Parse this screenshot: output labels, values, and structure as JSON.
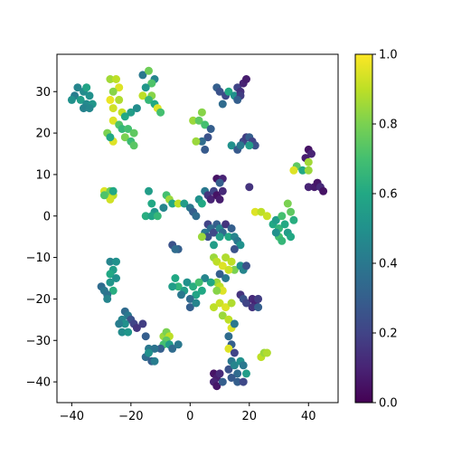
{
  "chart_data": {
    "type": "scatter",
    "title": "",
    "xlabel": "",
    "ylabel": "",
    "xlim": [
      -45,
      50
    ],
    "ylim": [
      -45,
      39
    ],
    "xticks": [
      -40,
      -20,
      0,
      20,
      40
    ],
    "yticks": [
      -40,
      -30,
      -20,
      -10,
      0,
      10,
      20,
      30
    ],
    "grid": false,
    "colormap": "viridis",
    "colorbar": {
      "min": 0.0,
      "max": 1.0,
      "ticks": [
        "0.0",
        "0.2",
        "0.4",
        "0.6",
        "0.8",
        "1.0"
      ]
    },
    "points": [
      {
        "x": -38,
        "y": 31,
        "c": 0.45
      },
      {
        "x": -36,
        "y": 30,
        "c": 0.48
      },
      {
        "x": -34,
        "y": 29,
        "c": 0.5
      },
      {
        "x": -39,
        "y": 29,
        "c": 0.42
      },
      {
        "x": -37,
        "y": 28,
        "c": 0.55
      },
      {
        "x": -35,
        "y": 27,
        "c": 0.47
      },
      {
        "x": -33,
        "y": 27,
        "c": 0.52
      },
      {
        "x": -36,
        "y": 26,
        "c": 0.44
      },
      {
        "x": -40,
        "y": 28,
        "c": 0.5
      },
      {
        "x": -35,
        "y": 31,
        "c": 0.58
      },
      {
        "x": -34,
        "y": 26,
        "c": 0.46
      },
      {
        "x": -27,
        "y": 33,
        "c": 0.86
      },
      {
        "x": -25,
        "y": 33,
        "c": 0.9
      },
      {
        "x": -24,
        "y": 31,
        "c": 0.95
      },
      {
        "x": -26,
        "y": 30,
        "c": 0.82
      },
      {
        "x": -27,
        "y": 28,
        "c": 0.97
      },
      {
        "x": -24,
        "y": 28,
        "c": 0.88
      },
      {
        "x": -26,
        "y": 26,
        "c": 0.93
      },
      {
        "x": -23,
        "y": 25,
        "c": 0.91
      },
      {
        "x": -26,
        "y": 23,
        "c": 0.95
      },
      {
        "x": -24,
        "y": 22,
        "c": 0.72
      },
      {
        "x": -22,
        "y": 24,
        "c": 0.6
      },
      {
        "x": -20,
        "y": 25,
        "c": 0.55
      },
      {
        "x": -18,
        "y": 26,
        "c": 0.48
      },
      {
        "x": -23,
        "y": 21,
        "c": 0.66
      },
      {
        "x": -21,
        "y": 21,
        "c": 0.7
      },
      {
        "x": -19,
        "y": 20,
        "c": 0.75
      },
      {
        "x": -22,
        "y": 19,
        "c": 0.8
      },
      {
        "x": -20,
        "y": 18,
        "c": 0.68
      },
      {
        "x": -19,
        "y": 17,
        "c": 0.74
      },
      {
        "x": -28,
        "y": 20,
        "c": 0.8
      },
      {
        "x": -26,
        "y": 18,
        "c": 0.95
      },
      {
        "x": -27,
        "y": 19,
        "c": 0.6
      },
      {
        "x": -16,
        "y": 34,
        "c": 0.4
      },
      {
        "x": -14,
        "y": 35,
        "c": 0.78
      },
      {
        "x": -12,
        "y": 33,
        "c": 0.45
      },
      {
        "x": -13,
        "y": 32,
        "c": 0.72
      },
      {
        "x": -15,
        "y": 31,
        "c": 0.52
      },
      {
        "x": -16,
        "y": 29,
        "c": 0.9
      },
      {
        "x": -13,
        "y": 29,
        "c": 0.82
      },
      {
        "x": -14,
        "y": 28,
        "c": 0.66
      },
      {
        "x": -12,
        "y": 27,
        "c": 0.6
      },
      {
        "x": -11,
        "y": 26,
        "c": 0.95
      },
      {
        "x": -10,
        "y": 25,
        "c": 0.7
      },
      {
        "x": 9,
        "y": 31,
        "c": 0.3
      },
      {
        "x": 10,
        "y": 30,
        "c": 0.25
      },
      {
        "x": 12,
        "y": 29,
        "c": 0.22
      },
      {
        "x": 11,
        "y": 27,
        "c": 0.35
      },
      {
        "x": 13,
        "y": 30,
        "c": 0.6
      },
      {
        "x": 15,
        "y": 29,
        "c": 0.5
      },
      {
        "x": 16,
        "y": 31,
        "c": 0.2
      },
      {
        "x": 17,
        "y": 30,
        "c": 0.14
      },
      {
        "x": 18,
        "y": 32,
        "c": 0.1
      },
      {
        "x": 17,
        "y": 29,
        "c": 0.18
      },
      {
        "x": 16,
        "y": 28,
        "c": 0.3
      },
      {
        "x": 19,
        "y": 33,
        "c": 0.08
      },
      {
        "x": 1,
        "y": 23,
        "c": 0.85
      },
      {
        "x": 3,
        "y": 23,
        "c": 0.75
      },
      {
        "x": 4,
        "y": 25,
        "c": 0.82
      },
      {
        "x": 5,
        "y": 22,
        "c": 0.7
      },
      {
        "x": 7,
        "y": 21,
        "c": 0.3
      },
      {
        "x": 6,
        "y": 19,
        "c": 0.25
      },
      {
        "x": 4,
        "y": 18,
        "c": 0.35
      },
      {
        "x": 2,
        "y": 18,
        "c": 0.85
      },
      {
        "x": 5,
        "y": 16,
        "c": 0.28
      },
      {
        "x": 14,
        "y": 17,
        "c": 0.5
      },
      {
        "x": 16,
        "y": 16,
        "c": 0.28
      },
      {
        "x": 18,
        "y": 18,
        "c": 0.22
      },
      {
        "x": 19,
        "y": 19,
        "c": 0.18
      },
      {
        "x": 20,
        "y": 19,
        "c": 0.3
      },
      {
        "x": 21,
        "y": 18,
        "c": 0.2
      },
      {
        "x": 22,
        "y": 17,
        "c": 0.25
      },
      {
        "x": 17,
        "y": 17,
        "c": 0.4
      },
      {
        "x": 20,
        "y": 17,
        "c": 0.55
      },
      {
        "x": 40,
        "y": 16,
        "c": 0.05
      },
      {
        "x": 41,
        "y": 15,
        "c": 0.1
      },
      {
        "x": 39,
        "y": 14,
        "c": 0.08
      },
      {
        "x": 40,
        "y": 13,
        "c": 0.86
      },
      {
        "x": 36,
        "y": 12,
        "c": 0.75
      },
      {
        "x": 35,
        "y": 11,
        "c": 0.95
      },
      {
        "x": 38,
        "y": 11,
        "c": 0.6
      },
      {
        "x": 40,
        "y": 11,
        "c": 0.85
      },
      {
        "x": 40,
        "y": 7,
        "c": 0.1
      },
      {
        "x": 42,
        "y": 7,
        "c": 0.08
      },
      {
        "x": 43,
        "y": 8,
        "c": 0.06
      },
      {
        "x": 44,
        "y": 7,
        "c": 0.12
      },
      {
        "x": 45,
        "y": 6,
        "c": 0.05
      },
      {
        "x": -29,
        "y": 6,
        "c": 0.95
      },
      {
        "x": -28,
        "y": 5,
        "c": 0.92
      },
      {
        "x": -27,
        "y": 6,
        "c": 0.78
      },
      {
        "x": -26,
        "y": 5,
        "c": 0.9
      },
      {
        "x": -27,
        "y": 4,
        "c": 0.93
      },
      {
        "x": -29,
        "y": 5,
        "c": 0.72
      },
      {
        "x": -26,
        "y": 6,
        "c": 0.6
      },
      {
        "x": -14,
        "y": 6,
        "c": 0.55
      },
      {
        "x": -13,
        "y": 3,
        "c": 0.6
      },
      {
        "x": -12,
        "y": 1,
        "c": 0.52
      },
      {
        "x": -15,
        "y": 0,
        "c": 0.62
      },
      {
        "x": -13,
        "y": 0,
        "c": 0.58
      },
      {
        "x": -11,
        "y": 0,
        "c": 0.66
      },
      {
        "x": -9,
        "y": 2,
        "c": 0.45
      },
      {
        "x": -8,
        "y": 5,
        "c": 0.7
      },
      {
        "x": -7,
        "y": 4,
        "c": 0.85
      },
      {
        "x": -6,
        "y": 3,
        "c": 0.6
      },
      {
        "x": -4,
        "y": 3,
        "c": 0.9
      },
      {
        "x": -2,
        "y": 3,
        "c": 0.55
      },
      {
        "x": 0,
        "y": 2,
        "c": 0.4
      },
      {
        "x": 1,
        "y": 1,
        "c": 0.3
      },
      {
        "x": 2,
        "y": 0,
        "c": 0.35
      },
      {
        "x": 3,
        "y": 4,
        "c": 0.5
      },
      {
        "x": 5,
        "y": 6,
        "c": 0.4
      },
      {
        "x": 4,
        "y": 3,
        "c": 0.6
      },
      {
        "x": 6,
        "y": 5,
        "c": 0.15
      },
      {
        "x": 7,
        "y": 4,
        "c": 0.1
      },
      {
        "x": 8,
        "y": 6,
        "c": 0.2
      },
      {
        "x": 9,
        "y": 5,
        "c": 0.05
      },
      {
        "x": 10,
        "y": 4,
        "c": 0.08
      },
      {
        "x": 11,
        "y": 6,
        "c": 0.12
      },
      {
        "x": 9,
        "y": 9,
        "c": 0.05
      },
      {
        "x": 11,
        "y": 9,
        "c": 0.1
      },
      {
        "x": 10,
        "y": 8,
        "c": 0.3
      },
      {
        "x": 20,
        "y": 7,
        "c": 0.15
      },
      {
        "x": 6,
        "y": -2,
        "c": 0.2
      },
      {
        "x": 7,
        "y": -3,
        "c": 0.35
      },
      {
        "x": 5,
        "y": -4,
        "c": 0.4
      },
      {
        "x": 6,
        "y": -5,
        "c": 0.25
      },
      {
        "x": 8,
        "y": -4,
        "c": 0.22
      },
      {
        "x": 9,
        "y": -2,
        "c": 0.3
      },
      {
        "x": 10,
        "y": -3,
        "c": 0.45
      },
      {
        "x": 11,
        "y": -4,
        "c": 0.35
      },
      {
        "x": 12,
        "y": -2,
        "c": 0.15
      },
      {
        "x": 10,
        "y": -5,
        "c": 0.55
      },
      {
        "x": 13,
        "y": -5,
        "c": 0.6
      },
      {
        "x": 14,
        "y": -3,
        "c": 0.3
      },
      {
        "x": 15,
        "y": -5,
        "c": 0.45
      },
      {
        "x": 16,
        "y": -6,
        "c": 0.4
      },
      {
        "x": 17,
        "y": -7,
        "c": 0.5
      },
      {
        "x": 15,
        "y": -8,
        "c": 0.25
      },
      {
        "x": 8,
        "y": -7,
        "c": 0.55
      },
      {
        "x": 4,
        "y": -5,
        "c": 0.85
      },
      {
        "x": 22,
        "y": 1,
        "c": 0.95
      },
      {
        "x": 24,
        "y": 1,
        "c": 0.9
      },
      {
        "x": 26,
        "y": 0,
        "c": 0.92
      },
      {
        "x": 28,
        "y": -2,
        "c": 0.6
      },
      {
        "x": 29,
        "y": -1,
        "c": 0.55
      },
      {
        "x": 30,
        "y": -3,
        "c": 0.65
      },
      {
        "x": 31,
        "y": 0,
        "c": 0.7
      },
      {
        "x": 32,
        "y": -2,
        "c": 0.6
      },
      {
        "x": 33,
        "y": 3,
        "c": 0.8
      },
      {
        "x": 34,
        "y": 1,
        "c": 0.75
      },
      {
        "x": 35,
        "y": -1,
        "c": 0.62
      },
      {
        "x": 33,
        "y": -4,
        "c": 0.55
      },
      {
        "x": 30,
        "y": -5,
        "c": 0.7
      },
      {
        "x": 31,
        "y": -6,
        "c": 0.66
      },
      {
        "x": 29,
        "y": -4,
        "c": 0.5
      },
      {
        "x": 34,
        "y": -5,
        "c": 0.6
      },
      {
        "x": -6,
        "y": -7,
        "c": 0.25
      },
      {
        "x": -4,
        "y": -8,
        "c": 0.3
      },
      {
        "x": -5,
        "y": -8,
        "c": 0.35
      },
      {
        "x": 8,
        "y": -10,
        "c": 0.85
      },
      {
        "x": 9,
        "y": -11,
        "c": 0.9
      },
      {
        "x": 11,
        "y": -12,
        "c": 0.95
      },
      {
        "x": 12,
        "y": -10,
        "c": 0.88
      },
      {
        "x": 14,
        "y": -11,
        "c": 0.9
      },
      {
        "x": 15,
        "y": -13,
        "c": 0.8
      },
      {
        "x": 13,
        "y": -13,
        "c": 0.92
      },
      {
        "x": 17,
        "y": -12,
        "c": 0.5
      },
      {
        "x": 18,
        "y": -13,
        "c": 0.45
      },
      {
        "x": 19,
        "y": -12,
        "c": 0.25
      },
      {
        "x": 12,
        "y": -15,
        "c": 0.4
      },
      {
        "x": 10,
        "y": -14,
        "c": 0.3
      },
      {
        "x": 9,
        "y": -16,
        "c": 0.85
      },
      {
        "x": 10,
        "y": -17,
        "c": 0.9
      },
      {
        "x": 11,
        "y": -18,
        "c": 0.95
      },
      {
        "x": 9,
        "y": -18,
        "c": 0.82
      },
      {
        "x": 7,
        "y": -16,
        "c": 0.6
      },
      {
        "x": 5,
        "y": -15,
        "c": 0.45
      },
      {
        "x": -5,
        "y": -15,
        "c": 0.6
      },
      {
        "x": -4,
        "y": -17,
        "c": 0.65
      },
      {
        "x": -2,
        "y": -18,
        "c": 0.55
      },
      {
        "x": -1,
        "y": -16,
        "c": 0.5
      },
      {
        "x": 1,
        "y": -17,
        "c": 0.62
      },
      {
        "x": 2,
        "y": -19,
        "c": 0.58
      },
      {
        "x": 3,
        "y": -16,
        "c": 0.7
      },
      {
        "x": 4,
        "y": -18,
        "c": 0.6
      },
      {
        "x": 0,
        "y": -20,
        "c": 0.35
      },
      {
        "x": 0,
        "y": -22,
        "c": 0.3
      },
      {
        "x": 2,
        "y": -21,
        "c": 0.45
      },
      {
        "x": -3,
        "y": -19,
        "c": 0.4
      },
      {
        "x": -6,
        "y": -17,
        "c": 0.55
      },
      {
        "x": 17,
        "y": -19,
        "c": 0.15
      },
      {
        "x": 18,
        "y": -20,
        "c": 0.25
      },
      {
        "x": 19,
        "y": -21,
        "c": 0.2
      },
      {
        "x": 21,
        "y": -20,
        "c": 0.12
      },
      {
        "x": 22,
        "y": -21,
        "c": 0.1
      },
      {
        "x": 23,
        "y": -20,
        "c": 0.18
      },
      {
        "x": 21,
        "y": -22,
        "c": 0.15
      },
      {
        "x": 23,
        "y": -22,
        "c": 0.3
      },
      {
        "x": 8,
        "y": -22,
        "c": 0.9
      },
      {
        "x": 10,
        "y": -21,
        "c": 0.92
      },
      {
        "x": 12,
        "y": -22,
        "c": 0.95
      },
      {
        "x": 14,
        "y": -21,
        "c": 0.88
      },
      {
        "x": 11,
        "y": -24,
        "c": 0.85
      },
      {
        "x": 13,
        "y": -25,
        "c": 0.9
      },
      {
        "x": 14,
        "y": -27,
        "c": 0.95
      },
      {
        "x": 15,
        "y": -26,
        "c": 0.4
      },
      {
        "x": 13,
        "y": -29,
        "c": 0.35
      },
      {
        "x": 14,
        "y": -31,
        "c": 0.3
      },
      {
        "x": 13,
        "y": -32,
        "c": 0.95
      },
      {
        "x": 15,
        "y": -33,
        "c": 0.2
      },
      {
        "x": -27,
        "y": -11,
        "c": 0.45
      },
      {
        "x": -25,
        "y": -11,
        "c": 0.5
      },
      {
        "x": -26,
        "y": -13,
        "c": 0.55
      },
      {
        "x": -27,
        "y": -14,
        "c": 0.6
      },
      {
        "x": -25,
        "y": -15,
        "c": 0.5
      },
      {
        "x": -27,
        "y": -16,
        "c": 0.52
      },
      {
        "x": -26,
        "y": -18,
        "c": 0.62
      },
      {
        "x": -30,
        "y": -17,
        "c": 0.35
      },
      {
        "x": -29,
        "y": -18,
        "c": 0.4
      },
      {
        "x": -28,
        "y": -19,
        "c": 0.38
      },
      {
        "x": -28,
        "y": -20,
        "c": 0.45
      },
      {
        "x": -22,
        "y": -23,
        "c": 0.35
      },
      {
        "x": -21,
        "y": -24,
        "c": 0.4
      },
      {
        "x": -20,
        "y": -25,
        "c": 0.25
      },
      {
        "x": -19,
        "y": -26,
        "c": 0.2
      },
      {
        "x": -23,
        "y": -25,
        "c": 0.45
      },
      {
        "x": -22,
        "y": -26,
        "c": 0.5
      },
      {
        "x": -24,
        "y": -26,
        "c": 0.42
      },
      {
        "x": -23,
        "y": -28,
        "c": 0.48
      },
      {
        "x": -21,
        "y": -28,
        "c": 0.52
      },
      {
        "x": -18,
        "y": -27,
        "c": 0.15
      },
      {
        "x": -16,
        "y": -26,
        "c": 0.18
      },
      {
        "x": -9,
        "y": -29,
        "c": 0.85
      },
      {
        "x": -8,
        "y": -28,
        "c": 0.8
      },
      {
        "x": -7,
        "y": -29,
        "c": 0.9
      },
      {
        "x": -8,
        "y": -30,
        "c": 0.75
      },
      {
        "x": -9,
        "y": -31,
        "c": 0.7
      },
      {
        "x": -7,
        "y": -31,
        "c": 0.55
      },
      {
        "x": -10,
        "y": -32,
        "c": 0.3
      },
      {
        "x": -6,
        "y": -32,
        "c": 0.35
      },
      {
        "x": -4,
        "y": -31,
        "c": 0.4
      },
      {
        "x": -15,
        "y": -29,
        "c": 0.3
      },
      {
        "x": -14,
        "y": -32,
        "c": 0.4
      },
      {
        "x": -12,
        "y": -32,
        "c": 0.38
      },
      {
        "x": -15,
        "y": -34,
        "c": 0.35
      },
      {
        "x": -13,
        "y": -35,
        "c": 0.3
      },
      {
        "x": -12,
        "y": -35,
        "c": 0.42
      },
      {
        "x": -14,
        "y": -33,
        "c": 0.5
      },
      {
        "x": 8,
        "y": -38,
        "c": 0.05
      },
      {
        "x": 9,
        "y": -39,
        "c": 0.08
      },
      {
        "x": 8,
        "y": -40,
        "c": 0.1
      },
      {
        "x": 10,
        "y": -38,
        "c": 0.12
      },
      {
        "x": 9,
        "y": -41,
        "c": 0.06
      },
      {
        "x": 11,
        "y": -40,
        "c": 0.3
      },
      {
        "x": 13,
        "y": -37,
        "c": 0.25
      },
      {
        "x": 14,
        "y": -35,
        "c": 0.4
      },
      {
        "x": 15,
        "y": -36,
        "c": 0.45
      },
      {
        "x": 16,
        "y": -38,
        "c": 0.35
      },
      {
        "x": 17,
        "y": -35,
        "c": 0.5
      },
      {
        "x": 18,
        "y": -36,
        "c": 0.4
      },
      {
        "x": 16,
        "y": -40,
        "c": 0.3
      },
      {
        "x": 18,
        "y": -40,
        "c": 0.22
      },
      {
        "x": 19,
        "y": -38,
        "c": 0.55
      },
      {
        "x": 14,
        "y": -39,
        "c": 0.28
      },
      {
        "x": 24,
        "y": -34,
        "c": 0.9
      },
      {
        "x": 25,
        "y": -33,
        "c": 0.85
      },
      {
        "x": 26,
        "y": -33,
        "c": 0.88
      }
    ]
  }
}
